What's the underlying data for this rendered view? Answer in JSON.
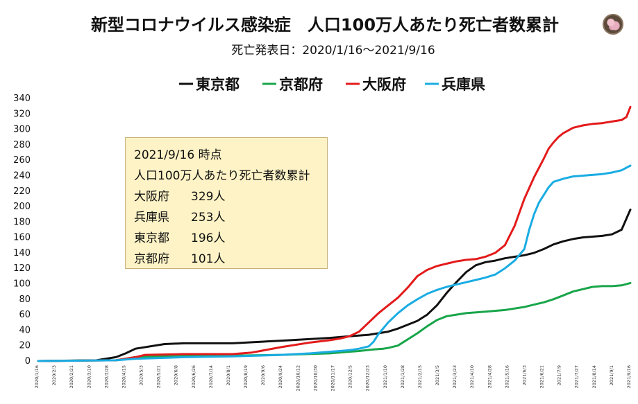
{
  "chart_data": {
    "type": "line",
    "title": "新型コロナウイルス感染症　人口100万人あたり死亡者数累計",
    "subtitle": "死亡発表日：2020/1/16～2021/9/16",
    "xlabel": "",
    "ylabel": "",
    "ylim": [
      0,
      340
    ],
    "ytick_step": 20,
    "legend_position": "top",
    "grid": false,
    "x_index_range": [
      0,
      609
    ],
    "x_tick_labels": [
      "2020/1/16",
      "2020/2/3",
      "2020/2/21",
      "2020/3/10",
      "2020/3/28",
      "2020/4/15",
      "2020/5/3",
      "2020/5/21",
      "2020/6/8",
      "2020/6/26",
      "2020/7/14",
      "2020/8/1",
      "2020/8/19",
      "2020/9/6",
      "2020/9/24",
      "2020/10/12",
      "2020/10/30",
      "2020/11/17",
      "2020/12/5",
      "2020/12/23",
      "2021/1/10",
      "2021/1/28",
      "2021/2/15",
      "2021/3/5",
      "2021/3/23",
      "2021/4/10",
      "2021/4/28",
      "2021/5/16",
      "2021/6/3",
      "2021/6/21",
      "2021/7/9",
      "2021/7/27",
      "2021/8/14",
      "2021/9/1",
      "2021/9/16"
    ],
    "series": [
      {
        "name": "東京都",
        "color": "#111111",
        "x": [
          0,
          60,
          80,
          90,
          100,
          130,
          150,
          200,
          230,
          260,
          300,
          320,
          340,
          350,
          360,
          370,
          380,
          390,
          400,
          410,
          420,
          430,
          440,
          450,
          460,
          470,
          480,
          490,
          500,
          510,
          520,
          530,
          540,
          550,
          560,
          570,
          580,
          590,
          600,
          609
        ],
        "values": [
          0,
          1,
          5,
          10,
          16,
          22,
          23,
          23,
          25,
          27,
          30,
          32,
          34,
          36,
          38,
          42,
          47,
          52,
          60,
          72,
          88,
          102,
          115,
          124,
          128,
          130,
          133,
          135,
          137,
          140,
          145,
          151,
          155,
          158,
          160,
          161,
          162,
          164,
          170,
          196
        ]
      },
      {
        "name": "京都府",
        "color": "#18a54a",
        "x": [
          0,
          80,
          100,
          130,
          200,
          250,
          300,
          330,
          345,
          355,
          360,
          370,
          380,
          390,
          400,
          410,
          420,
          430,
          440,
          460,
          480,
          490,
          500,
          510,
          520,
          530,
          540,
          550,
          560,
          570,
          580,
          590,
          600,
          609
        ],
        "values": [
          0,
          1,
          5,
          6,
          7,
          8,
          10,
          13,
          15,
          16,
          17,
          20,
          28,
          36,
          45,
          53,
          58,
          60,
          62,
          64,
          66,
          68,
          70,
          73,
          76,
          80,
          85,
          90,
          93,
          96,
          97,
          97,
          98,
          101
        ]
      },
      {
        "name": "大阪府",
        "color": "#e31b1b",
        "x": [
          0,
          80,
          100,
          110,
          150,
          200,
          220,
          250,
          280,
          300,
          310,
          320,
          330,
          340,
          350,
          360,
          370,
          380,
          390,
          400,
          410,
          420,
          430,
          440,
          450,
          460,
          470,
          480,
          490,
          500,
          510,
          515,
          520,
          525,
          530,
          535,
          540,
          550,
          560,
          570,
          580,
          590,
          600,
          605,
          609
        ],
        "values": [
          0,
          1,
          5,
          8,
          9,
          9,
          11,
          18,
          24,
          27,
          29,
          32,
          38,
          50,
          62,
          72,
          82,
          95,
          110,
          118,
          123,
          126,
          129,
          131,
          132,
          135,
          140,
          150,
          175,
          210,
          238,
          250,
          262,
          275,
          283,
          290,
          295,
          302,
          305,
          307,
          308,
          310,
          312,
          316,
          329
        ]
      },
      {
        "name": "兵庫県",
        "color": "#1aace3",
        "x": [
          0,
          80,
          100,
          150,
          200,
          250,
          280,
          300,
          320,
          330,
          340,
          345,
          350,
          360,
          370,
          380,
          390,
          400,
          410,
          420,
          430,
          440,
          450,
          460,
          470,
          480,
          490,
          500,
          505,
          510,
          515,
          520,
          525,
          530,
          540,
          550,
          560,
          570,
          580,
          590,
          600,
          609
        ],
        "values": [
          0,
          1,
          3,
          5,
          6,
          8,
          10,
          12,
          14,
          16,
          19,
          25,
          35,
          50,
          62,
          72,
          80,
          87,
          92,
          96,
          99,
          102,
          105,
          108,
          112,
          120,
          130,
          145,
          170,
          190,
          205,
          215,
          225,
          232,
          236,
          239,
          240,
          241,
          242,
          244,
          247,
          253
        ]
      }
    ]
  },
  "info_box": {
    "date_line": "2021/9/16 時点",
    "heading": "人口100万人あたり死亡者数累計",
    "rows": [
      {
        "pref": "大阪府",
        "value": "329人"
      },
      {
        "pref": "兵庫県",
        "value": "253人"
      },
      {
        "pref": "東京都",
        "value": "196人"
      },
      {
        "pref": "京都府",
        "value": "101人"
      }
    ]
  },
  "icons": {
    "corner_photo": "flower-photo-icon"
  }
}
